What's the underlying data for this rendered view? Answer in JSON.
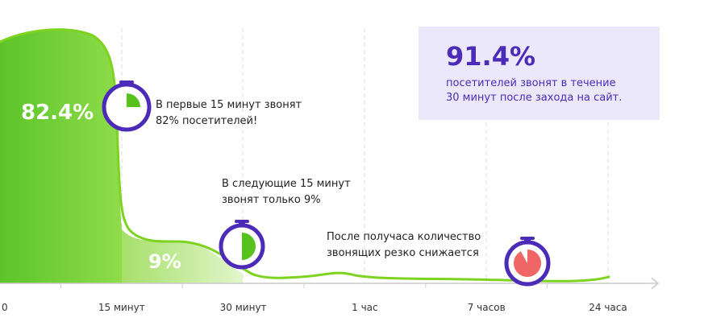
{
  "colors": {
    "curve": "#7ed321",
    "fill_top": "#5cc42a",
    "fill_light": "#bfe88a",
    "timer_ring": "#4b2bb8",
    "timer_green": "#58c21d",
    "timer_red": "#f06565",
    "stat_bg": "#ebe8fb",
    "stat_text": "#4b2bb8",
    "axis": "#cccccc"
  },
  "chart_data": {
    "type": "area",
    "x_ticks": [
      "0",
      "15 минут",
      "30 минут",
      "1 час",
      "7 часов",
      "24 часа"
    ],
    "x_minor_ticks_between_labels": 1,
    "segments": [
      {
        "from": "0",
        "to": "15 минут",
        "value_percent": 82.4,
        "label": "82.4%"
      },
      {
        "from": "15 минут",
        "to": "30 минут",
        "value_percent": 9,
        "label": "9%"
      }
    ],
    "grid": "vertical dashed at labeled ticks",
    "legend": "none"
  },
  "annotations": {
    "first_line1": "В первые 15 минут звонят",
    "first_line2": "82% посетителей!",
    "second_line1": "В следующие 15 минут",
    "second_line2": "звонят только 9%",
    "third_line1": "После получаса количество",
    "third_line2": "звонящих резко снижается"
  },
  "stat": {
    "value": "91.4%",
    "caption_line1": "посетителей звонят в течение",
    "caption_line2": "30 минут после захода на сайт."
  },
  "icons": {
    "timer1": "stopwatch-icon",
    "timer2": "stopwatch-icon",
    "timer3": "stopwatch-icon"
  },
  "timers": {
    "first_filled_fraction": 0.25,
    "second_filled_fraction": 0.5,
    "third_filled_fraction": 0.92
  }
}
